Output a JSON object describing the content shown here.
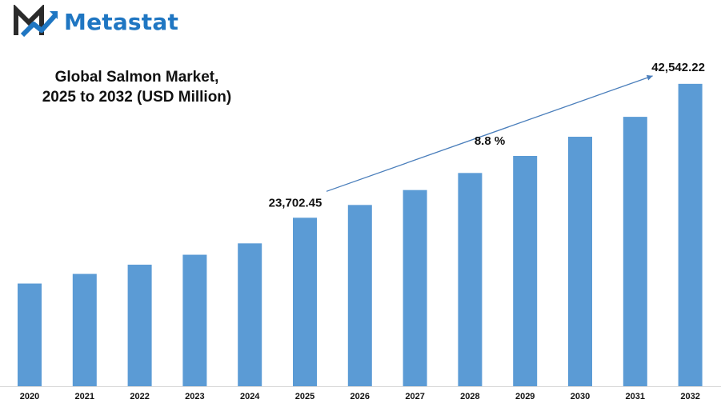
{
  "brand": {
    "name": "Metastat",
    "logo_icon": "metastat-logo-icon"
  },
  "chart_data": {
    "type": "bar",
    "title_line1": "Global Salmon Market,",
    "title_line2": "2025 to 2032 (USD Million)",
    "categories": [
      "2020",
      "2021",
      "2022",
      "2023",
      "2024",
      "2025",
      "2026",
      "2027",
      "2028",
      "2029",
      "2030",
      "2031",
      "2032"
    ],
    "values": [
      14450,
      15800,
      17100,
      18500,
      20100,
      23702.45,
      25500,
      27600,
      30000,
      32400,
      35100,
      37900,
      42542.22
    ],
    "ylim": [
      0,
      45000
    ],
    "bar_color": "#5b9bd5",
    "annotations": {
      "start_label": "23,702.45",
      "end_label": "42,542.22",
      "cagr_label": "8.8  %"
    },
    "grid": false,
    "legend": "none"
  }
}
